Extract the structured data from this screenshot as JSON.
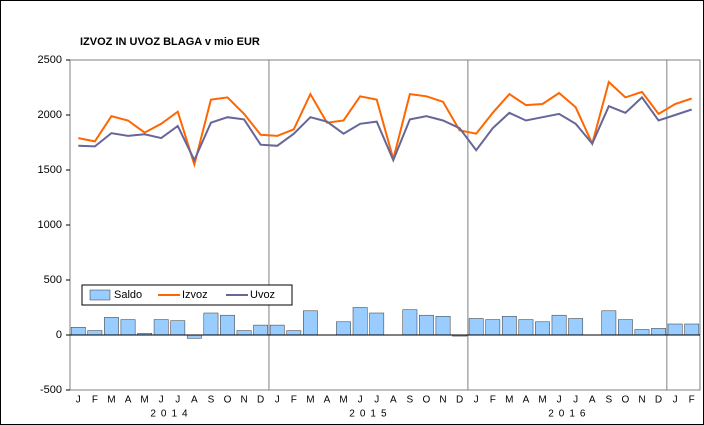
{
  "chart_data": {
    "type": "bar-line",
    "title": "IZVOZ IN UVOZ BLAGA v mio EUR",
    "categories": [
      "J",
      "F",
      "M",
      "A",
      "M",
      "J",
      "J",
      "A",
      "S",
      "O",
      "N",
      "D",
      "J",
      "F",
      "M",
      "A",
      "M",
      "J",
      "J",
      "A",
      "S",
      "O",
      "N",
      "D",
      "J",
      "F",
      "M",
      "A",
      "M",
      "J",
      "J",
      "A",
      "S",
      "O",
      "N",
      "D",
      "J",
      "F"
    ],
    "years": [
      "2014",
      "2015",
      "2016"
    ],
    "series": [
      {
        "name": "Saldo",
        "kind": "bar",
        "color": "#99ccff",
        "values": [
          70,
          40,
          160,
          140,
          15,
          140,
          130,
          -30,
          200,
          180,
          40,
          90,
          90,
          40,
          220,
          0,
          120,
          250,
          200,
          0,
          230,
          180,
          170,
          -10,
          150,
          140,
          170,
          140,
          120,
          180,
          150,
          0,
          220,
          140,
          50,
          60,
          100,
          100
        ]
      },
      {
        "name": "Izvoz",
        "kind": "line",
        "color": "#ff6600",
        "values": [
          1790,
          1760,
          1990,
          1950,
          1840,
          1920,
          2030,
          1550,
          2140,
          2160,
          2010,
          1820,
          1810,
          1870,
          2190,
          1930,
          1950,
          2170,
          2140,
          1600,
          2190,
          2170,
          2120,
          1860,
          1830,
          2020,
          2190,
          2090,
          2100,
          2200,
          2070,
          1740,
          2300,
          2160,
          2210,
          2010,
          2100,
          2150
        ]
      },
      {
        "name": "Uvoz",
        "kind": "line",
        "color": "#666699",
        "values": [
          1720,
          1715,
          1835,
          1810,
          1825,
          1790,
          1900,
          1590,
          1930,
          1980,
          1960,
          1730,
          1720,
          1830,
          1980,
          1940,
          1830,
          1920,
          1940,
          1590,
          1960,
          1990,
          1950,
          1880,
          1680,
          1880,
          2020,
          1950,
          1980,
          2010,
          1920,
          1740,
          2080,
          2020,
          2160,
          1950,
          2000,
          2050
        ]
      }
    ],
    "ylim": [
      -500,
      2500
    ],
    "yticks": [
      -500,
      0,
      500,
      1000,
      1500,
      2000,
      2500
    ]
  }
}
